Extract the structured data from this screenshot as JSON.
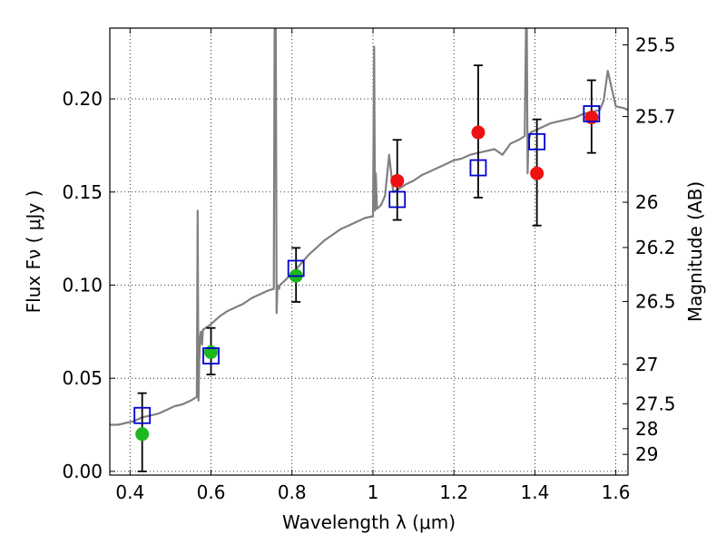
{
  "chart_data": {
    "type": "scatter",
    "title": "",
    "xlabel": "Wavelength  λ (μm)",
    "ylabel": "Flux  Fν  ( μJy )",
    "ylabel_right": "Magnitude (AB)",
    "xlim": [
      0.35,
      1.63
    ],
    "ylim": [
      -0.002,
      0.238
    ],
    "grid": true,
    "grid_style": "dotted",
    "x_ticks": [
      0.4,
      0.6,
      0.8,
      1.0,
      1.2,
      1.4,
      1.6
    ],
    "x_tick_labels": [
      "0.4",
      "0.6",
      "0.8",
      "1",
      "1.2",
      "1.4",
      "1.6"
    ],
    "y_ticks": [
      0.0,
      0.05,
      0.1,
      0.15,
      0.2
    ],
    "y_tick_labels": [
      "0.00",
      "0.05",
      "0.10",
      "0.15",
      "0.20"
    ],
    "right_ticks": [
      {
        "label": "25.5",
        "flux": 0.229
      },
      {
        "label": "25.7",
        "flux": 0.1905
      },
      {
        "label": "26",
        "flux": 0.1445
      },
      {
        "label": "26.2",
        "flux": 0.1202
      },
      {
        "label": "26.5",
        "flux": 0.0912
      },
      {
        "label": "27",
        "flux": 0.0575
      },
      {
        "label": "27.5",
        "flux": 0.0363
      },
      {
        "label": "28",
        "flux": 0.0229
      },
      {
        "label": "29",
        "flux": 0.0091
      }
    ],
    "colors": {
      "spectrum": "#808080",
      "observed_optical": "#1cb81c",
      "observed_nir": "#ee1111",
      "model_box": "#0000cc",
      "errorbar": "#000000"
    },
    "spectrum": {
      "x": [
        0.35,
        0.37,
        0.39,
        0.41,
        0.43,
        0.45,
        0.47,
        0.49,
        0.51,
        0.53,
        0.55,
        0.565,
        0.567,
        0.569,
        0.571,
        0.573,
        0.575,
        0.578,
        0.58,
        0.6,
        0.62,
        0.64,
        0.66,
        0.68,
        0.7,
        0.72,
        0.74,
        0.755,
        0.757,
        0.76,
        0.762,
        0.764,
        0.768,
        0.77,
        0.78,
        0.8,
        0.82,
        0.84,
        0.86,
        0.88,
        0.9,
        0.92,
        0.94,
        0.96,
        0.98,
        1.0,
        1.003,
        1.005,
        1.007,
        1.01,
        1.02,
        1.03,
        1.04,
        1.05,
        1.06,
        1.08,
        1.1,
        1.12,
        1.14,
        1.16,
        1.18,
        1.2,
        1.22,
        1.24,
        1.26,
        1.28,
        1.3,
        1.32,
        1.34,
        1.36,
        1.375,
        1.378,
        1.38,
        1.382,
        1.384,
        1.388,
        1.39,
        1.4,
        1.42,
        1.44,
        1.46,
        1.48,
        1.5,
        1.52,
        1.54,
        1.56,
        1.57,
        1.58,
        1.6,
        1.62,
        1.63
      ],
      "y": [
        0.025,
        0.025,
        0.026,
        0.027,
        0.029,
        0.03,
        0.031,
        0.033,
        0.035,
        0.036,
        0.038,
        0.04,
        0.14,
        0.038,
        0.06,
        0.072,
        0.075,
        0.068,
        0.076,
        0.079,
        0.083,
        0.086,
        0.088,
        0.09,
        0.093,
        0.095,
        0.097,
        0.098,
        0.245,
        0.245,
        0.085,
        0.1,
        0.098,
        0.1,
        0.102,
        0.106,
        0.111,
        0.116,
        0.12,
        0.124,
        0.127,
        0.13,
        0.132,
        0.134,
        0.136,
        0.137,
        0.228,
        0.14,
        0.16,
        0.141,
        0.143,
        0.148,
        0.17,
        0.15,
        0.151,
        0.154,
        0.156,
        0.159,
        0.161,
        0.163,
        0.165,
        0.167,
        0.168,
        0.17,
        0.171,
        0.172,
        0.173,
        0.17,
        0.176,
        0.178,
        0.18,
        0.245,
        0.245,
        0.16,
        0.178,
        0.18,
        0.182,
        0.183,
        0.185,
        0.187,
        0.188,
        0.189,
        0.19,
        0.192,
        0.193,
        0.194,
        0.199,
        0.215,
        0.196,
        0.195,
        0.194
      ]
    },
    "observed_optical": [
      {
        "x": 0.43,
        "y": 0.02,
        "yerr_low": 0.02,
        "yerr_high": 0.022
      },
      {
        "x": 0.6,
        "y": 0.064,
        "yerr_low": 0.012,
        "yerr_high": 0.013
      },
      {
        "x": 0.81,
        "y": 0.105,
        "yerr_low": 0.014,
        "yerr_high": 0.015
      }
    ],
    "observed_nir": [
      {
        "x": 1.06,
        "y": 0.156,
        "yerr_low": 0.021,
        "yerr_high": 0.022
      },
      {
        "x": 1.26,
        "y": 0.182,
        "yerr_low": 0.035,
        "yerr_high": 0.036
      },
      {
        "x": 1.405,
        "y": 0.16,
        "yerr_low": 0.028,
        "yerr_high": 0.029
      },
      {
        "x": 1.54,
        "y": 0.19,
        "yerr_low": 0.019,
        "yerr_high": 0.02
      }
    ],
    "model_photometry": [
      {
        "x": 0.43,
        "y": 0.03
      },
      {
        "x": 0.6,
        "y": 0.062
      },
      {
        "x": 0.81,
        "y": 0.109
      },
      {
        "x": 1.06,
        "y": 0.146
      },
      {
        "x": 1.26,
        "y": 0.163
      },
      {
        "x": 1.405,
        "y": 0.177
      },
      {
        "x": 1.54,
        "y": 0.192
      }
    ]
  }
}
